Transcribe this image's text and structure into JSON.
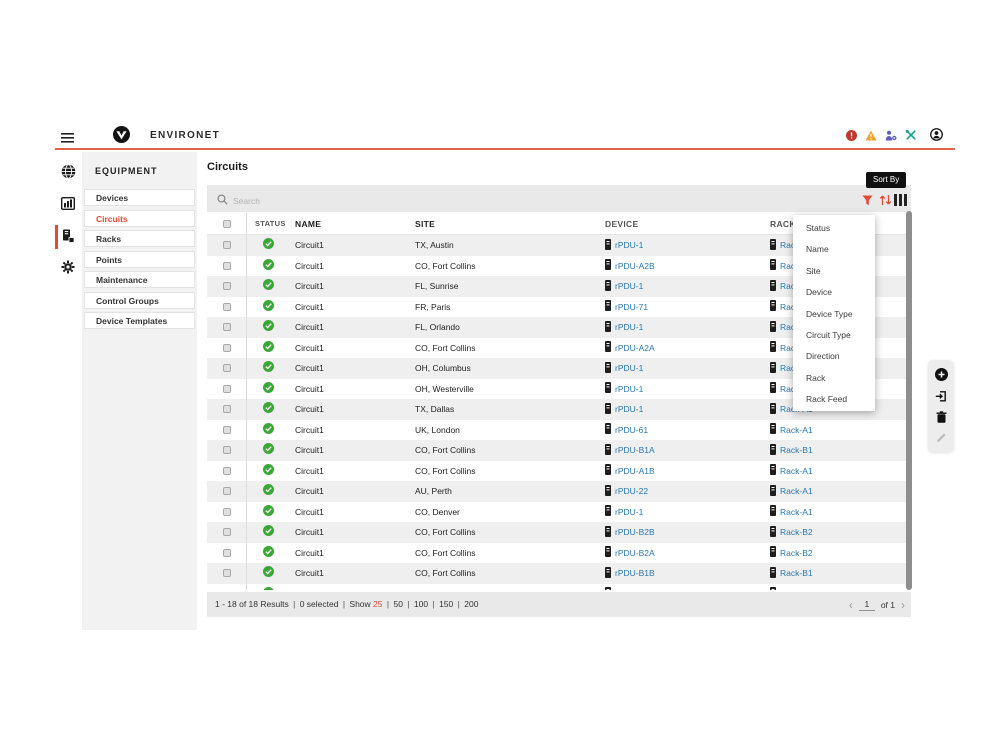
{
  "colors": {
    "accent": "#e14b32",
    "link": "#2878b0",
    "status_ok": "#3da639"
  },
  "header": {
    "app_name": "ENVIRONET"
  },
  "nav_rail": {
    "items": [
      "globe",
      "dashboards",
      "equipment",
      "settings"
    ],
    "active": "equipment"
  },
  "sidebar": {
    "title": "EQUIPMENT",
    "items": [
      {
        "label": "Devices",
        "active": false
      },
      {
        "label": "Circuits",
        "active": true
      },
      {
        "label": "Racks",
        "active": false
      },
      {
        "label": "Points",
        "active": false
      },
      {
        "label": "Maintenance",
        "active": false
      },
      {
        "label": "Control Groups",
        "active": false
      },
      {
        "label": "Device Templates",
        "active": false
      }
    ]
  },
  "page": {
    "title": "Circuits"
  },
  "search": {
    "placeholder": "Search"
  },
  "toolbar": {
    "sort_tooltip": "Sort By",
    "icons": [
      "filter-icon",
      "sort-icon",
      "columns-icon"
    ]
  },
  "sort_menu": {
    "items": [
      "Status",
      "Name",
      "Site",
      "Device",
      "Device Type",
      "Circuit Type",
      "Direction",
      "Rack",
      "Rack Feed"
    ]
  },
  "table": {
    "columns": [
      "STATUS",
      "NAME",
      "SITE",
      "DEVICE",
      "RACK"
    ],
    "rows": [
      {
        "status": "ok",
        "name": "Circuit1",
        "site": "TX, Austin",
        "device": "rPDU-1",
        "rack": "Rack"
      },
      {
        "status": "ok",
        "name": "Circuit1",
        "site": "CO, Fort Collins",
        "device": "rPDU-A2B",
        "rack": "Rack"
      },
      {
        "status": "ok",
        "name": "Circuit1",
        "site": "FL, Sunrise",
        "device": "rPDU-1",
        "rack": "Rack"
      },
      {
        "status": "ok",
        "name": "Circuit1",
        "site": "FR, Paris",
        "device": "rPDU-71",
        "rack": "Rack"
      },
      {
        "status": "ok",
        "name": "Circuit1",
        "site": "FL, Orlando",
        "device": "rPDU-1",
        "rack": "Rack"
      },
      {
        "status": "ok",
        "name": "Circuit1",
        "site": "CO, Fort Collins",
        "device": "rPDU-A2A",
        "rack": "Rack"
      },
      {
        "status": "ok",
        "name": "Circuit1",
        "site": "OH, Columbus",
        "device": "rPDU-1",
        "rack": "Rack"
      },
      {
        "status": "ok",
        "name": "Circuit1",
        "site": "OH, Westerville",
        "device": "rPDU-1",
        "rack": "Rack"
      },
      {
        "status": "ok",
        "name": "Circuit1",
        "site": "TX, Dallas",
        "device": "rPDU-1",
        "rack": "Rack-A1"
      },
      {
        "status": "ok",
        "name": "Circuit1",
        "site": "UK, London",
        "device": "rPDU-61",
        "rack": "Rack-A1"
      },
      {
        "status": "ok",
        "name": "Circuit1",
        "site": "CO, Fort Collins",
        "device": "rPDU-B1A",
        "rack": "Rack-B1"
      },
      {
        "status": "ok",
        "name": "Circuit1",
        "site": "CO, Fort Collins",
        "device": "rPDU-A1B",
        "rack": "Rack-A1"
      },
      {
        "status": "ok",
        "name": "Circuit1",
        "site": "AU, Perth",
        "device": "rPDU-22",
        "rack": "Rack-A1"
      },
      {
        "status": "ok",
        "name": "Circuit1",
        "site": "CO, Denver",
        "device": "rPDU-1",
        "rack": "Rack-A1"
      },
      {
        "status": "ok",
        "name": "Circuit1",
        "site": "CO, Fort Collins",
        "device": "rPDU-B2B",
        "rack": "Rack-B2"
      },
      {
        "status": "ok",
        "name": "Circuit1",
        "site": "CO, Fort Collins",
        "device": "rPDU-B2A",
        "rack": "Rack-B2"
      },
      {
        "status": "ok",
        "name": "Circuit1",
        "site": "CO, Fort Collins",
        "device": "rPDU-B1B",
        "rack": "Rack-B1"
      },
      {
        "status": "ok",
        "name": "",
        "site": "",
        "device": "",
        "rack": "",
        "partial": true
      }
    ]
  },
  "footer": {
    "results_text": "1 - 18 of 18 Results",
    "selected_text": "0 selected",
    "show_label": "Show",
    "show_options": [
      "25",
      "50",
      "100",
      "150",
      "200"
    ],
    "show_selected": "25"
  },
  "pagination": {
    "prev": "‹",
    "page": "1",
    "of_label": "of 1",
    "next": "›"
  }
}
